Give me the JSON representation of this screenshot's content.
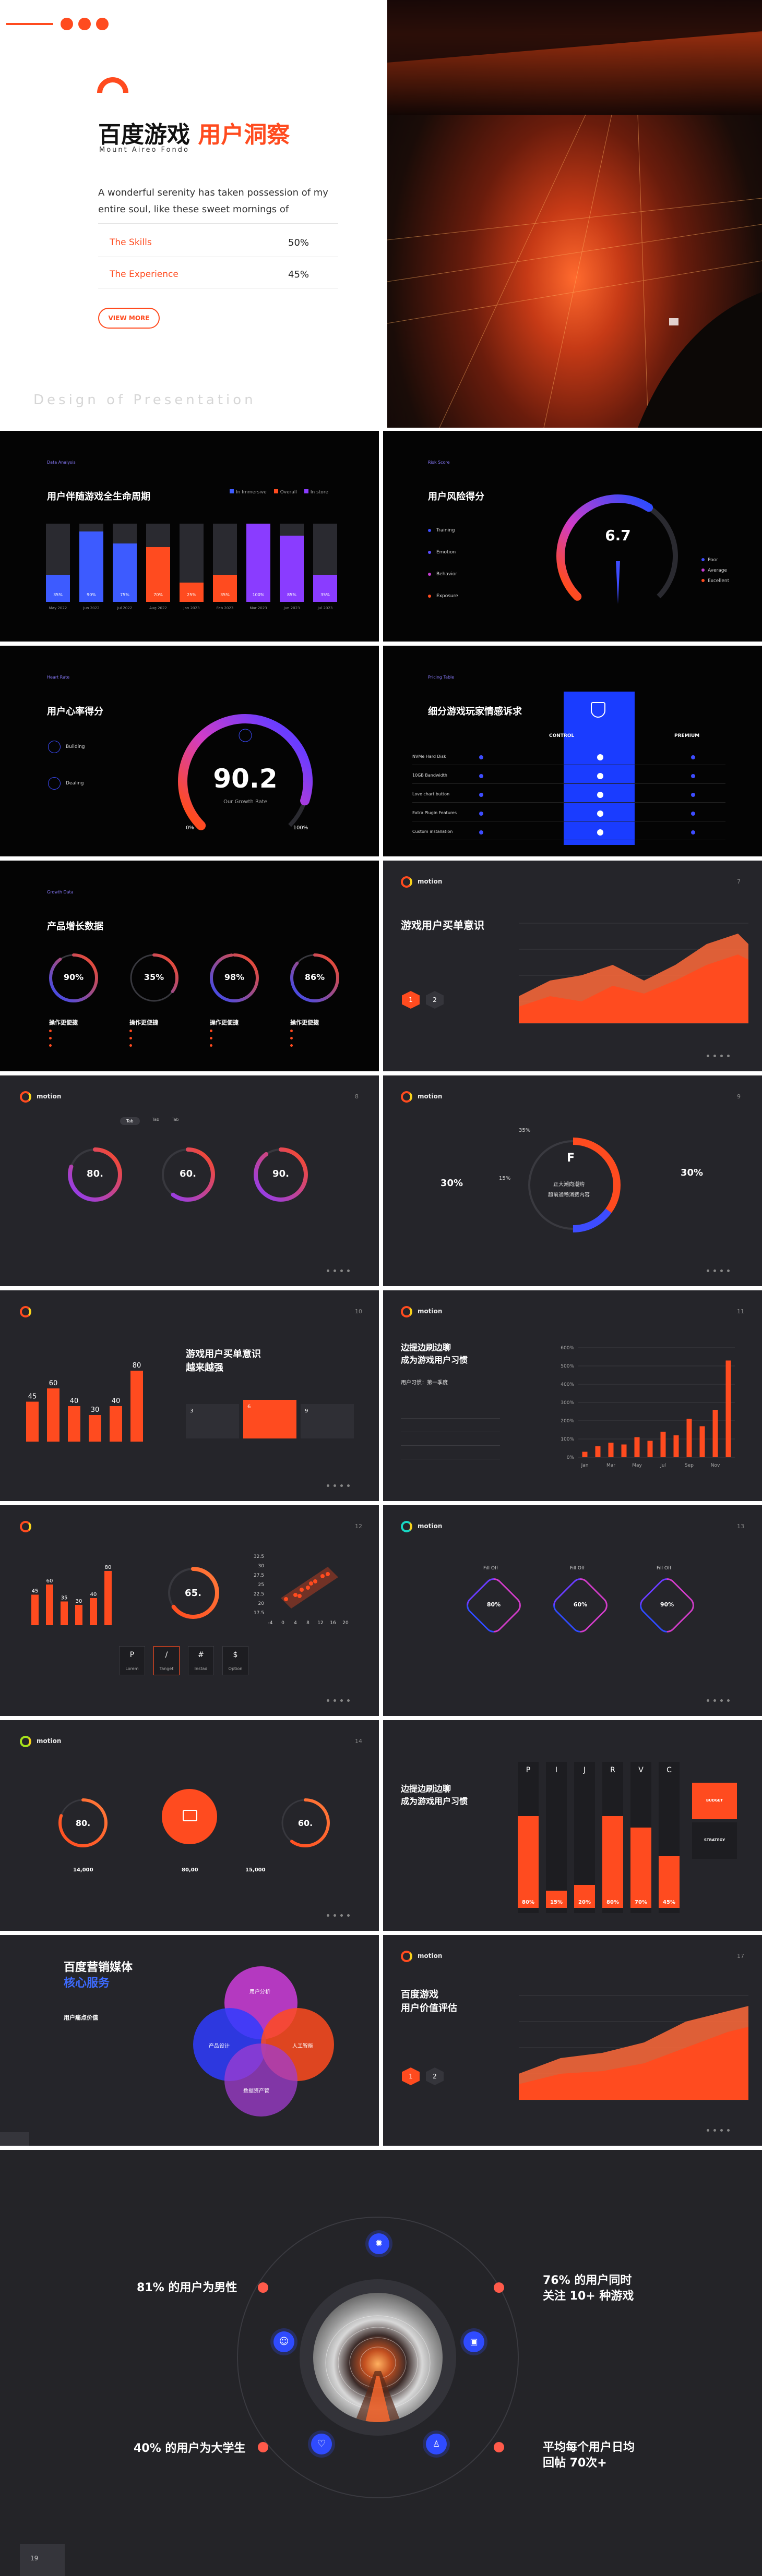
{
  "cover": {
    "title": "百度游戏",
    "title_accent": "用户洞察",
    "subtitle": "Mount Aireo Fondo",
    "desc": "A wonderful serenity has taken possession of my entire soul, like these sweet mornings of",
    "skills_label": "The Skills",
    "skills_value": "50%",
    "experience_label": "The Experience",
    "experience_value": "45%",
    "button": "VIEW MORE",
    "footer": "Design of Presentation"
  },
  "s2": {
    "title": "用户伴随游戏全生命周期",
    "legend": [
      "In Immersive",
      "Overall",
      "In store"
    ],
    "bars": [
      {
        "label": "May 2022",
        "value": "35%",
        "fill": 0.35,
        "color": "#3d5bff"
      },
      {
        "label": "Jun 2022",
        "value": "90%",
        "fill": 0.9,
        "color": "#3d5bff"
      },
      {
        "label": "Jul 2022",
        "value": "75%",
        "fill": 0.75,
        "color": "#3d5bff"
      },
      {
        "label": "Aug 2022",
        "value": "70%",
        "fill": 0.7,
        "color": "#ff4b1f"
      },
      {
        "label": "Jan 2023",
        "value": "25%",
        "fill": 0.25,
        "color": "#ff4b1f"
      },
      {
        "label": "Feb 2023",
        "value": "35%",
        "fill": 0.35,
        "color": "#ff4b1f"
      },
      {
        "label": "Mar 2023",
        "value": "100%",
        "fill": 1.0,
        "color": "#8a3cff"
      },
      {
        "label": "Jun 2023",
        "value": "85%",
        "fill": 0.85,
        "color": "#8a3cff"
      },
      {
        "label": "Jul 2023",
        "value": "35%",
        "fill": 0.35,
        "color": "#8a3cff"
      }
    ]
  },
  "s3": {
    "title": "用户风险得分",
    "items": [
      "Training",
      "Emotion",
      "Behavior",
      "Exposure"
    ],
    "gauge_value": "6.7",
    "gauge_level": 0.62,
    "legend": [
      "Poor",
      "Average",
      "Excellent"
    ]
  },
  "s4": {
    "title": "用户心率得分",
    "items": [
      "Building",
      "Dealing"
    ],
    "value": "90.2",
    "value_level": 0.9,
    "caption": "Our Growth Rate",
    "min": "0%",
    "max": "100%"
  },
  "s5": {
    "title": "细分游戏玩家情感诉求",
    "col1": "CONTROL",
    "col2": "PREMIUM",
    "rows": [
      "NVMe Hard Disk",
      "10GB Bandwidth",
      "Love chart button",
      "Extra Plugin Features",
      "Custom installation"
    ]
  },
  "s6": {
    "title": "产品增长数据",
    "rings": [
      {
        "value": "90%",
        "level": 0.9,
        "label": "操作更便捷"
      },
      {
        "value": "35%",
        "level": 0.35,
        "label": "操作更便捷"
      },
      {
        "value": "98%",
        "level": 0.98,
        "label": "操作更便捷"
      },
      {
        "value": "86%",
        "level": 0.86,
        "label": "操作更便捷"
      }
    ]
  },
  "s7": {
    "brand": "motion",
    "page": "7",
    "title": "游戏用户买单意识",
    "nums": [
      "1",
      "2"
    ]
  },
  "s8": {
    "brand": "motion",
    "page": "8",
    "rings": [
      {
        "value": "80.",
        "level": 0.8
      },
      {
        "value": "60.",
        "level": 0.6
      },
      {
        "value": "90.",
        "level": 0.9
      }
    ]
  },
  "s9": {
    "brand": "motion",
    "page": "9",
    "left_pct": "30%",
    "right_pct": "30%",
    "big_letter": "F",
    "top_pct": "35%",
    "side_pct": "15%",
    "line1": "正大潮向潮购",
    "line2": "超前通畅消费内容",
    "donut": [
      {
        "value": 35,
        "color": "#ff4b1f"
      },
      {
        "value": 15,
        "color": "#3d4cff"
      },
      {
        "value": 50,
        "color": "#3a3a40"
      }
    ]
  },
  "s10": {
    "brand": "motion",
    "page": "10",
    "title_lines": [
      "游戏用户买单意识",
      "越来越强"
    ],
    "chart_data": {
      "type": "bar",
      "categories": [
        "1",
        "2",
        "3",
        "4",
        "5",
        "6"
      ],
      "values": [
        45,
        60,
        40,
        30,
        40,
        80
      ],
      "labels": [
        "45",
        "60",
        "40",
        "30",
        "40",
        "80"
      ],
      "ylim": [
        0,
        100
      ]
    },
    "cards": [
      "3",
      "6",
      "9"
    ]
  },
  "s11": {
    "brand": "motion",
    "page": "11",
    "title_lines": [
      "边提边刷边聊",
      "成为游戏用户习惯"
    ],
    "chart_data": {
      "type": "bar",
      "categories": [
        "Jan",
        "Feb",
        "Mar",
        "Apr",
        "May",
        "Jun",
        "Jul",
        "Aug",
        "Sep",
        "Oct",
        "Nov",
        "Dec"
      ],
      "values": [
        30,
        60,
        80,
        70,
        110,
        90,
        140,
        120,
        210,
        170,
        260,
        530
      ],
      "tick_labels": [
        "Jan",
        "Mar",
        "May",
        "Jul",
        "Sep",
        "Nov"
      ],
      "y_ticks": [
        "0%",
        "100%",
        "200%",
        "300%",
        "400%",
        "500%",
        "600%"
      ],
      "ylim": [
        0,
        600
      ]
    },
    "list_header": "用户习惯：第一季度"
  },
  "s12": {
    "brand": "motion",
    "page": "12",
    "bar_labels": [
      "45",
      "60",
      "35",
      "30",
      "40",
      "80"
    ],
    "bar_values": [
      45,
      60,
      35,
      30,
      40,
      80
    ],
    "ring_value": "65.",
    "ring_level": 0.65,
    "scatter_y_ticks": [
      "32.5",
      "30",
      "27.5",
      "25",
      "22.5",
      "20",
      "17.5"
    ],
    "scatter_x_ticks": [
      "-4",
      "0",
      "4",
      "8",
      "12",
      "16",
      "20"
    ],
    "keys": [
      {
        "key": "P",
        "label": "Lorem"
      },
      {
        "key": "/",
        "label": "Tanget"
      },
      {
        "key": "#",
        "label": "Instad"
      },
      {
        "key": "$",
        "label": "Option"
      }
    ]
  },
  "s13": {
    "brand": "motion",
    "page": "13",
    "rings": [
      {
        "label": "Fill Off",
        "value": "80%"
      },
      {
        "label": "Fill Off",
        "value": "60%"
      },
      {
        "label": "Fill Off",
        "value": "90%"
      }
    ]
  },
  "s14": {
    "brand": "motion",
    "page": "14",
    "left_value": "80.",
    "left_level": 0.8,
    "right_value": "60.",
    "right_level": 0.6,
    "stats": [
      "14,000",
      "80,00",
      "15,000"
    ]
  },
  "s15": {
    "brand": "motion",
    "page": "15",
    "title_lines": [
      "边提边刷边聊",
      "成为游戏用户习惯"
    ],
    "cols": [
      "P",
      "I",
      "J",
      "R",
      "V",
      "C"
    ],
    "values": [
      "80%",
      "15%",
      "20%",
      "80%",
      "70%",
      "45%"
    ],
    "levels": [
      0.8,
      0.15,
      0.2,
      0.8,
      0.7,
      0.45
    ],
    "tags": [
      "BUDGET",
      "STRATEGY"
    ]
  },
  "s16": {
    "title": "百度营销媒体",
    "title_accent": "核心服务",
    "subtitle": "用户痛点价值",
    "circles": [
      "用户分析",
      "产品设计",
      "人工智能",
      "数据资产管"
    ]
  },
  "s17": {
    "brand": "motion",
    "page": "17",
    "title_lines": [
      "百度游戏",
      "用户价值评估"
    ],
    "nums": [
      "1",
      "2"
    ]
  },
  "final": {
    "stat1": "81% 的用户为男性",
    "stat2_lines": [
      "76% 的用户同时",
      "关注 10+ 种游戏"
    ],
    "stat3": "40% 的用户为大学生",
    "stat4_lines": [
      "平均每个用户日均",
      "回帖 70次+"
    ],
    "page": "19"
  }
}
